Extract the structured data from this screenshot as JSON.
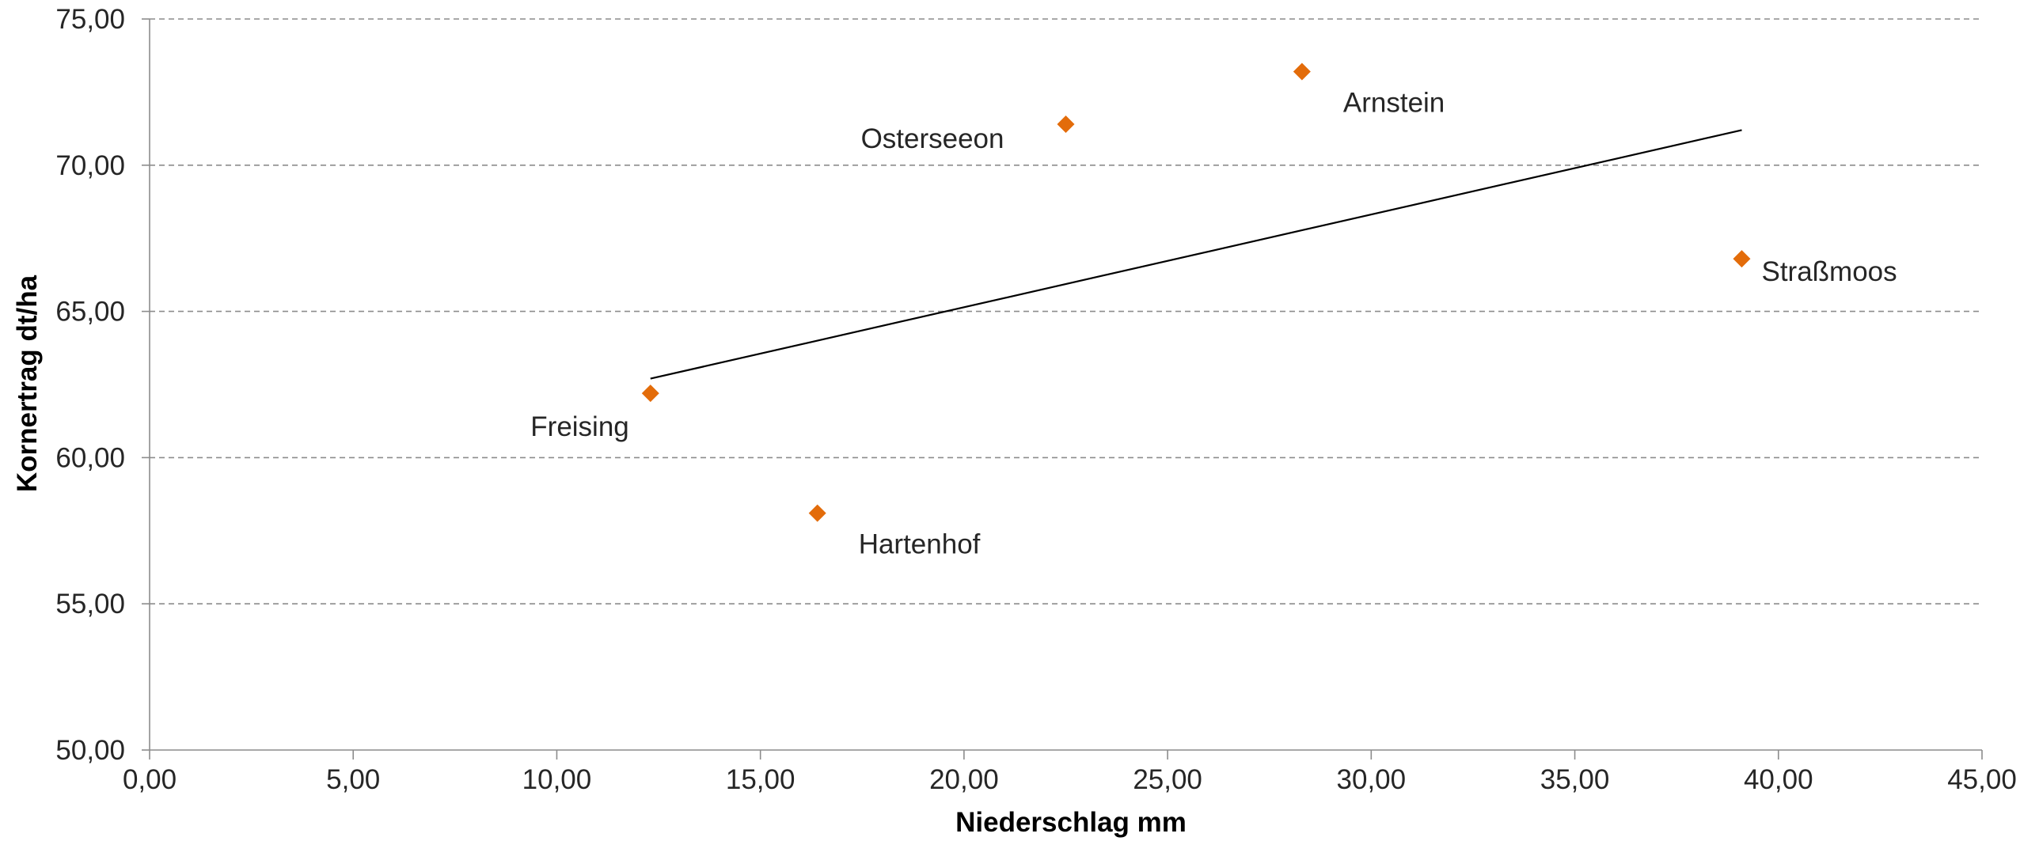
{
  "chart_data": {
    "type": "scatter",
    "xlabel": "Niederschlag mm",
    "ylabel": "Kornertrag dt/ha",
    "xlim": [
      0,
      45
    ],
    "ylim": [
      50,
      75
    ],
    "xticks": [
      0,
      5,
      10,
      15,
      20,
      25,
      30,
      35,
      40,
      45
    ],
    "yticks": [
      50,
      55,
      60,
      65,
      70,
      75
    ],
    "xtick_labels": [
      "0,00",
      "5,00",
      "10,00",
      "15,00",
      "20,00",
      "25,00",
      "30,00",
      "35,00",
      "40,00",
      "45,00"
    ],
    "ytick_labels": [
      "50,00",
      "55,00",
      "60,00",
      "65,00",
      "70,00",
      "75,00"
    ],
    "grid": "horizontal dashed",
    "marker": "diamond",
    "marker_color": "#e36c0a",
    "points": [
      {
        "label": "Freising",
        "x": 12.3,
        "y": 62.2,
        "label_pos": "bottom-left"
      },
      {
        "label": "Hartenhof",
        "x": 16.4,
        "y": 58.1,
        "label_pos": "bottom-right"
      },
      {
        "label": "Osterseeon",
        "x": 22.5,
        "y": 71.4,
        "label_pos": "left"
      },
      {
        "label": "Arnstein",
        "x": 28.3,
        "y": 73.2,
        "label_pos": "bottom-right"
      },
      {
        "label": "Straßmoos",
        "x": 39.1,
        "y": 66.8,
        "label_pos": "right"
      }
    ],
    "trendline": {
      "type": "linear",
      "color": "#000000",
      "x": [
        12.3,
        39.1
      ],
      "y": [
        62.7,
        71.2
      ]
    }
  }
}
